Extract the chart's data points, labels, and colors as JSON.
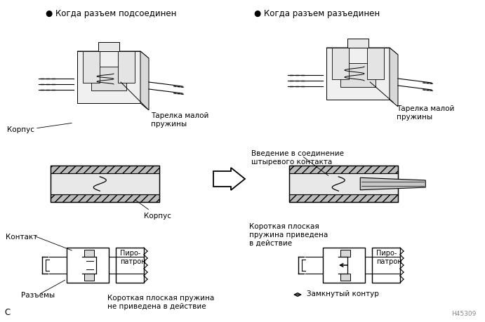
{
  "title_left": "● Когда разъем подсоединен",
  "title_right": "● Когда разъем разъединен",
  "label_korpus_left": "Корпус",
  "label_tarelka_left": "Тарелка малой\nпружины",
  "label_korpus2_left": "Корпус",
  "label_kontakt": "Контакт",
  "label_razemy": "Разъемы",
  "label_piro": "Пиро-\nпатрон",
  "label_korotkaya_ne": "Короткая плоская пружина\nне приведена в действие",
  "label_vvedenie": "Введение в соединение\nштыревого контакта",
  "label_tarelka_right": "Тарелка малой\nпружины",
  "label_korotkaya_yes": "Короткая плоская\nпружина приведена\nв действие",
  "label_piro_right": "Пиро-\nпатрон",
  "label_zamknuty": "Замкнутый контур",
  "label_C": "C",
  "label_H": "H45309",
  "bg_color": "#ffffff",
  "line_color": "#000000",
  "text_color": "#000000",
  "fontsize_title": 8.5,
  "fontsize_label": 7.5,
  "fontsize_small": 6.5
}
